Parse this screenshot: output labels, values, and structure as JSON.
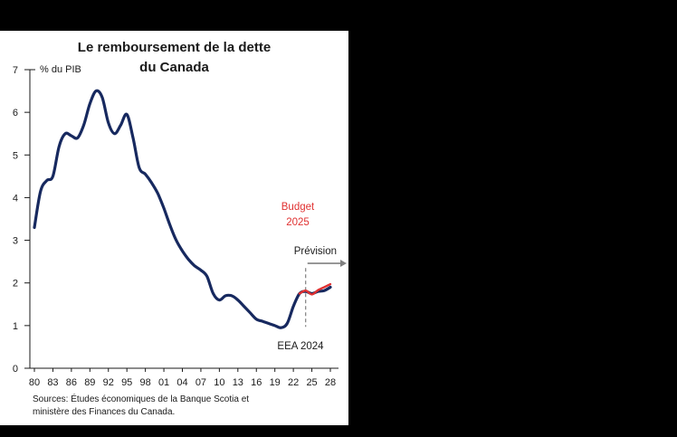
{
  "page": {
    "background_color": "#000000",
    "panel_color": "#ffffff"
  },
  "chart_data": {
    "type": "line",
    "title": "Le remboursement de la dette du Canada",
    "title_lines": [
      "Le remboursement de la dette",
      "du Canada"
    ],
    "ylabel": "% du PIB",
    "xlabel": "",
    "ylim": [
      0,
      7
    ],
    "y_ticks": [
      0,
      1,
      2,
      3,
      4,
      5,
      6,
      7
    ],
    "x_range": [
      1980,
      2028
    ],
    "x_tick_labels": [
      "80",
      "83",
      "86",
      "89",
      "92",
      "95",
      "98",
      "01",
      "04",
      "07",
      "10",
      "13",
      "16",
      "19",
      "22",
      "25",
      "28"
    ],
    "x_tick_years": [
      1980,
      1983,
      1986,
      1989,
      1992,
      1995,
      1998,
      2001,
      2004,
      2007,
      2010,
      2013,
      2016,
      2019,
      2022,
      2025,
      2028
    ],
    "grid": false,
    "legend_position": "none",
    "forecast_marker": {
      "x": 2024,
      "y_top": 2.35,
      "y_bottom": 0.97,
      "arrow_y": 2.46
    },
    "series": [
      {
        "name": "EEA 2024",
        "color": "#17295f",
        "x": [
          1980,
          1981,
          1982,
          1983,
          1984,
          1985,
          1986,
          1987,
          1988,
          1989,
          1990,
          1991,
          1992,
          1993,
          1994,
          1995,
          1996,
          1997,
          1998,
          1999,
          2000,
          2001,
          2002,
          2003,
          2004,
          2005,
          2006,
          2007,
          2008,
          2009,
          2010,
          2011,
          2012,
          2013,
          2014,
          2015,
          2016,
          2017,
          2018,
          2019,
          2020,
          2021,
          2022,
          2023,
          2024,
          2025,
          2026,
          2027,
          2028
        ],
        "values": [
          3.3,
          4.15,
          4.4,
          4.5,
          5.2,
          5.5,
          5.45,
          5.4,
          5.7,
          6.2,
          6.5,
          6.35,
          5.75,
          5.5,
          5.7,
          5.95,
          5.4,
          4.7,
          4.55,
          4.35,
          4.1,
          3.75,
          3.35,
          3.0,
          2.75,
          2.55,
          2.4,
          2.3,
          2.15,
          1.75,
          1.6,
          1.7,
          1.7,
          1.6,
          1.45,
          1.3,
          1.15,
          1.1,
          1.05,
          1.0,
          0.95,
          1.05,
          1.45,
          1.75,
          1.8,
          1.75,
          1.8,
          1.82,
          1.9
        ]
      },
      {
        "name": "Budget 2025",
        "color": "#e03131",
        "x": [
          2023,
          2024,
          2025,
          2026,
          2027,
          2028
        ],
        "values": [
          1.75,
          1.82,
          1.73,
          1.83,
          1.9,
          1.97
        ]
      }
    ],
    "annotations": {
      "budget_lines": [
        "Budget",
        "2025"
      ],
      "prevision": "Prévision",
      "eea": "EEA 2024"
    },
    "source_lines": [
      "Sources: Études économiques de la Banque Scotia et",
      "ministère des Finances du Canada."
    ]
  }
}
